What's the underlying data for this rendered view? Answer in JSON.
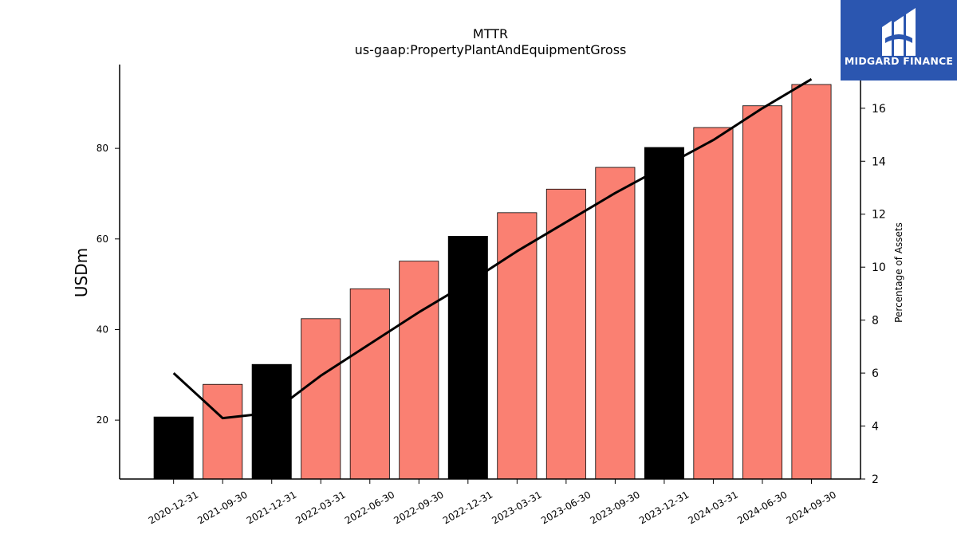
{
  "logo": {
    "text": "MIDGARD FINANCE",
    "icon": "midgard-logo-icon",
    "background": "#2b56b0"
  },
  "chart_data": {
    "type": "bar",
    "title": "MTTR",
    "subtitle": "us-gaap:PropertyPlantAndEquipmentGross",
    "ylabel": "USDm",
    "y2label": "Percentage of Assets",
    "categories": [
      "2020-12-31",
      "2021-09-30",
      "2021-12-31",
      "2022-03-31",
      "2022-06-30",
      "2022-09-30",
      "2022-12-31",
      "2023-03-31",
      "2023-06-30",
      "2023-09-30",
      "2023-12-31",
      "2024-03-31",
      "2024-06-30",
      "2024-09-30"
    ],
    "series": [
      {
        "type": "bar",
        "axis": "left",
        "values": [
          20.7,
          27.9,
          32.3,
          42.4,
          49.0,
          55.1,
          60.6,
          65.8,
          71.0,
          75.8,
          80.2,
          84.6,
          89.4,
          94.1
        ],
        "colors": [
          "#000000",
          "#fa8072",
          "#000000",
          "#fa8072",
          "#fa8072",
          "#fa8072",
          "#000000",
          "#fa8072",
          "#fa8072",
          "#fa8072",
          "#000000",
          "#fa8072",
          "#fa8072",
          "#fa8072"
        ]
      },
      {
        "type": "line",
        "axis": "right",
        "color": "#000000",
        "values": [
          6.0,
          4.3,
          4.5,
          5.9,
          7.1,
          8.3,
          9.4,
          10.6,
          11.7,
          12.8,
          13.8,
          14.8,
          16.0,
          17.1
        ]
      }
    ],
    "ylim": [
      7.0,
      98.5
    ],
    "y2lim": [
      2.0,
      17.65
    ],
    "yticks": [
      20,
      40,
      60,
      80
    ],
    "y2ticks": [
      2,
      4,
      6,
      8,
      10,
      12,
      14,
      16
    ],
    "grid": false,
    "legend": "none"
  }
}
